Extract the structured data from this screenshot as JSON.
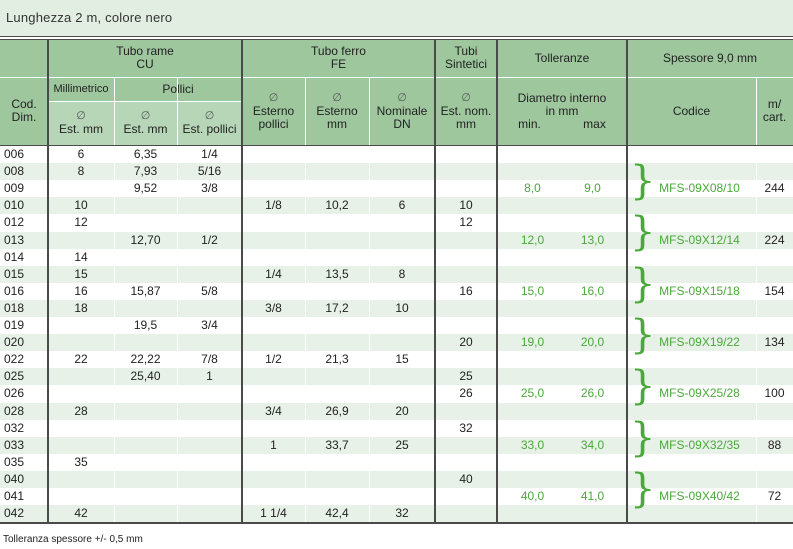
{
  "title": "Lunghezza 2 m, colore nero",
  "headers": {
    "cod_dim": "Cod.\nDim.",
    "tubo_rame": "Tubo rame\nCU",
    "millimetrico": "Millimetrico",
    "pollici": "Pollici",
    "est_mm": "Est. mm",
    "est_mm2": "Est. mm",
    "est_pollici": "Est. pollici",
    "tubo_ferro": "Tubo ferro\nFE",
    "esterno_pollici": "Esterno\npollici",
    "esterno_mm": "Esterno\nmm",
    "nominale_dn": "Nominale\nDN",
    "tubi_sintetici": "Tubi\nSintetici",
    "est_nom_mm": "Est. nom.\nmm",
    "tolleranze": "Tolleranze",
    "diametro_interno": "Diametro interno\nin mm",
    "min": "min.",
    "max": "max",
    "spessore": "Spessore 9,0 mm",
    "codice": "Codice",
    "m_cart": "m/\ncart.",
    "diam_symbol": "∅"
  },
  "rows": [
    {
      "code": "006",
      "mm": "6",
      "pmm": "6,35",
      "pin": "1/4",
      "fe_in": "",
      "fe_mm": "",
      "fe_dn": "",
      "sint": ""
    },
    {
      "code": "008",
      "mm": "8",
      "pmm": "7,93",
      "pin": "5/16",
      "fe_in": "",
      "fe_mm": "",
      "fe_dn": "",
      "sint": ""
    },
    {
      "code": "009",
      "mm": "",
      "pmm": "9,52",
      "pin": "3/8",
      "fe_in": "",
      "fe_mm": "",
      "fe_dn": "",
      "sint": ""
    },
    {
      "code": "010",
      "mm": "10",
      "pmm": "",
      "pin": "",
      "fe_in": "1/8",
      "fe_mm": "10,2",
      "fe_dn": "6",
      "sint": "10"
    },
    {
      "code": "012",
      "mm": "12",
      "pmm": "",
      "pin": "",
      "fe_in": "",
      "fe_mm": "",
      "fe_dn": "",
      "sint": "12"
    },
    {
      "code": "013",
      "mm": "",
      "pmm": "12,70",
      "pin": "1/2",
      "fe_in": "",
      "fe_mm": "",
      "fe_dn": "",
      "sint": ""
    },
    {
      "code": "014",
      "mm": "14",
      "pmm": "",
      "pin": "",
      "fe_in": "",
      "fe_mm": "",
      "fe_dn": "",
      "sint": ""
    },
    {
      "code": "015",
      "mm": "15",
      "pmm": "",
      "pin": "",
      "fe_in": "1/4",
      "fe_mm": "13,5",
      "fe_dn": "8",
      "sint": ""
    },
    {
      "code": "016",
      "mm": "16",
      "pmm": "15,87",
      "pin": "5/8",
      "fe_in": "",
      "fe_mm": "",
      "fe_dn": "",
      "sint": "16"
    },
    {
      "code": "018",
      "mm": "18",
      "pmm": "",
      "pin": "",
      "fe_in": "3/8",
      "fe_mm": "17,2",
      "fe_dn": "10",
      "sint": ""
    },
    {
      "code": "019",
      "mm": "",
      "pmm": "19,5",
      "pin": "3/4",
      "fe_in": "",
      "fe_mm": "",
      "fe_dn": "",
      "sint": ""
    },
    {
      "code": "020",
      "mm": "",
      "pmm": "",
      "pin": "",
      "fe_in": "",
      "fe_mm": "",
      "fe_dn": "",
      "sint": "20"
    },
    {
      "code": "022",
      "mm": "22",
      "pmm": "22,22",
      "pin": "7/8",
      "fe_in": "1/2",
      "fe_mm": "21,3",
      "fe_dn": "15",
      "sint": ""
    },
    {
      "code": "025",
      "mm": "",
      "pmm": "25,40",
      "pin": "1",
      "fe_in": "",
      "fe_mm": "",
      "fe_dn": "",
      "sint": "25"
    },
    {
      "code": "026",
      "mm": "",
      "pmm": "",
      "pin": "",
      "fe_in": "",
      "fe_mm": "",
      "fe_dn": "",
      "sint": "26"
    },
    {
      "code": "028",
      "mm": "28",
      "pmm": "",
      "pin": "",
      "fe_in": "3/4",
      "fe_mm": "26,9",
      "fe_dn": "20",
      "sint": ""
    },
    {
      "code": "032",
      "mm": "",
      "pmm": "",
      "pin": "",
      "fe_in": "",
      "fe_mm": "",
      "fe_dn": "",
      "sint": "32"
    },
    {
      "code": "033",
      "mm": "",
      "pmm": "",
      "pin": "",
      "fe_in": "1",
      "fe_mm": "33,7",
      "fe_dn": "25",
      "sint": ""
    },
    {
      "code": "035",
      "mm": "35",
      "pmm": "",
      "pin": "",
      "fe_in": "",
      "fe_mm": "",
      "fe_dn": "",
      "sint": ""
    },
    {
      "code": "040",
      "mm": "",
      "pmm": "",
      "pin": "",
      "fe_in": "",
      "fe_mm": "",
      "fe_dn": "",
      "sint": "40"
    },
    {
      "code": "041",
      "mm": "",
      "pmm": "",
      "pin": "",
      "fe_in": "",
      "fe_mm": "",
      "fe_dn": "",
      "sint": ""
    },
    {
      "code": "042",
      "mm": "42",
      "pmm": "",
      "pin": "",
      "fe_in": "1 1/4",
      "fe_mm": "42,4",
      "fe_dn": "32",
      "sint": ""
    }
  ],
  "products": [
    {
      "min": "8,0",
      "max": "9,0",
      "codice": "MFS-09X08/10",
      "mcart": "244"
    },
    {
      "min": "12,0",
      "max": "13,0",
      "codice": "MFS-09X12/14",
      "mcart": "224"
    },
    {
      "min": "15,0",
      "max": "16,0",
      "codice": "MFS-09X15/18",
      "mcart": "154"
    },
    {
      "min": "19,0",
      "max": "20,0",
      "codice": "MFS-09X19/22",
      "mcart": "134"
    },
    {
      "min": "25,0",
      "max": "26,0",
      "codice": "MFS-09X25/28",
      "mcart": "100"
    },
    {
      "min": "33,0",
      "max": "34,0",
      "codice": "MFS-09X32/35",
      "mcart": "88"
    },
    {
      "min": "40,0",
      "max": "41,0",
      "codice": "MFS-09X40/42",
      "mcart": "72"
    }
  ],
  "footer": "Tolleranza spessore +/- 0,5 mm",
  "colors": {
    "header": "#9ec79e",
    "header_light": "#b7d6b7",
    "alt_row": "#e7f1e7",
    "accent": "#4aa83a",
    "title_bg": "#e3eee3"
  }
}
